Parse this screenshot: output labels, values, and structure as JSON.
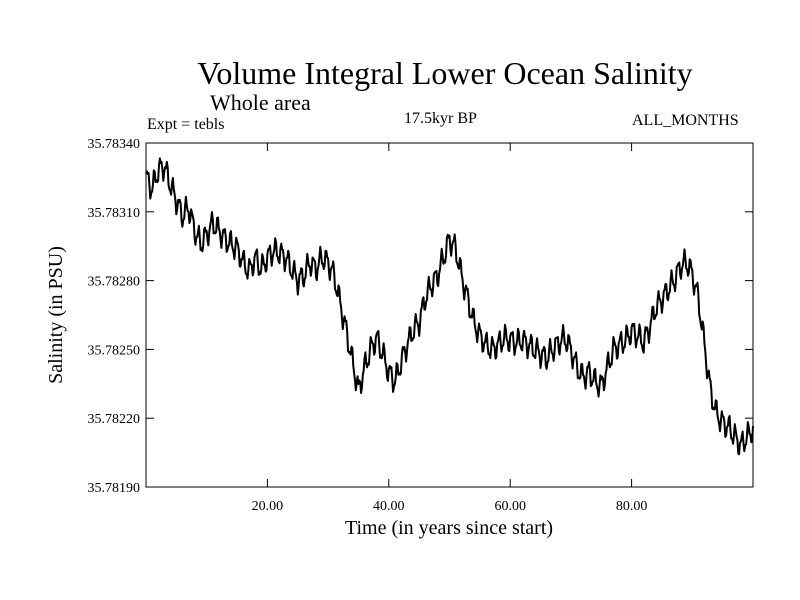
{
  "header": {
    "title": "Volume Integral Lower Ocean Salinity",
    "subtitle": "Whole area",
    "experiment": "Expt = tebls",
    "period": "17.5kyr BP",
    "months": "ALL_MONTHS"
  },
  "chart_data": {
    "type": "line",
    "title": "Volume Integral Lower Ocean Salinity",
    "subtitle": "Whole area",
    "xlabel": "Time (in years since start)",
    "ylabel": "Salinity (in PSU)",
    "xlim": [
      0,
      100
    ],
    "ylim": [
      35.7819,
      35.7834
    ],
    "xticks": [
      20,
      40,
      60,
      80
    ],
    "xtick_labels": [
      "20.00",
      "40.00",
      "60.00",
      "80.00"
    ],
    "yticks": [
      35.7819,
      35.7822,
      35.7825,
      35.7828,
      35.7831,
      35.7834
    ],
    "ytick_labels": [
      "35.78190",
      "35.78220",
      "35.78250",
      "35.78280",
      "35.78310",
      "35.78340"
    ],
    "grid": false,
    "series": [
      {
        "name": "Salinity",
        "x": [
          0,
          1,
          2,
          3,
          4,
          5,
          6,
          7,
          8,
          9,
          10,
          11,
          12,
          13,
          14,
          15,
          16,
          17,
          18,
          19,
          20,
          21,
          22,
          23,
          24,
          25,
          26,
          27,
          28,
          29,
          30,
          31,
          32,
          33,
          34,
          35,
          36,
          37,
          38,
          39,
          40,
          41,
          42,
          43,
          44,
          45,
          46,
          47,
          48,
          49,
          50,
          51,
          52,
          53,
          54,
          55,
          56,
          57,
          58,
          59,
          60,
          61,
          62,
          63,
          64,
          65,
          66,
          67,
          68,
          69,
          70,
          71,
          72,
          73,
          74,
          75,
          76,
          77,
          78,
          79,
          80,
          81,
          82,
          83,
          84,
          85,
          86,
          87,
          88,
          89,
          90,
          91,
          92,
          93,
          94,
          95,
          96,
          97,
          98,
          99,
          100
        ],
        "y": [
          35.78325,
          35.7832,
          35.78328,
          35.7833,
          35.78322,
          35.78315,
          35.78308,
          35.78312,
          35.78302,
          35.78296,
          35.783,
          35.78305,
          35.78302,
          35.78298,
          35.78296,
          35.78294,
          35.78288,
          35.78284,
          35.7829,
          35.78285,
          35.7829,
          35.78293,
          35.78292,
          35.7829,
          35.78285,
          35.7828,
          35.78282,
          35.78288,
          35.78285,
          35.7829,
          35.78288,
          35.78282,
          35.7827,
          35.78258,
          35.78245,
          35.78232,
          35.78242,
          35.7825,
          35.78255,
          35.78248,
          35.7824,
          35.78236,
          35.78244,
          35.78252,
          35.78258,
          35.78262,
          35.78272,
          35.78278,
          35.78282,
          35.7829,
          35.78298,
          35.78294,
          35.78282,
          35.78272,
          35.78262,
          35.78256,
          35.78252,
          35.7825,
          35.78252,
          35.78255,
          35.78254,
          35.78253,
          35.78254,
          35.78252,
          35.7825,
          35.78248,
          35.78246,
          35.7825,
          35.78253,
          35.78255,
          35.7825,
          35.78242,
          35.78238,
          35.7824,
          35.78236,
          35.78234,
          35.78242,
          35.7825,
          35.78252,
          35.78254,
          35.78258,
          35.78256,
          35.78253,
          35.7826,
          35.78268,
          35.78272,
          35.78276,
          35.7828,
          35.78286,
          35.78288,
          35.78283,
          35.78272,
          35.78252,
          35.78232,
          35.78222,
          35.78218,
          35.78216,
          35.78212,
          35.78208,
          35.78212,
          35.78215
        ]
      }
    ]
  }
}
